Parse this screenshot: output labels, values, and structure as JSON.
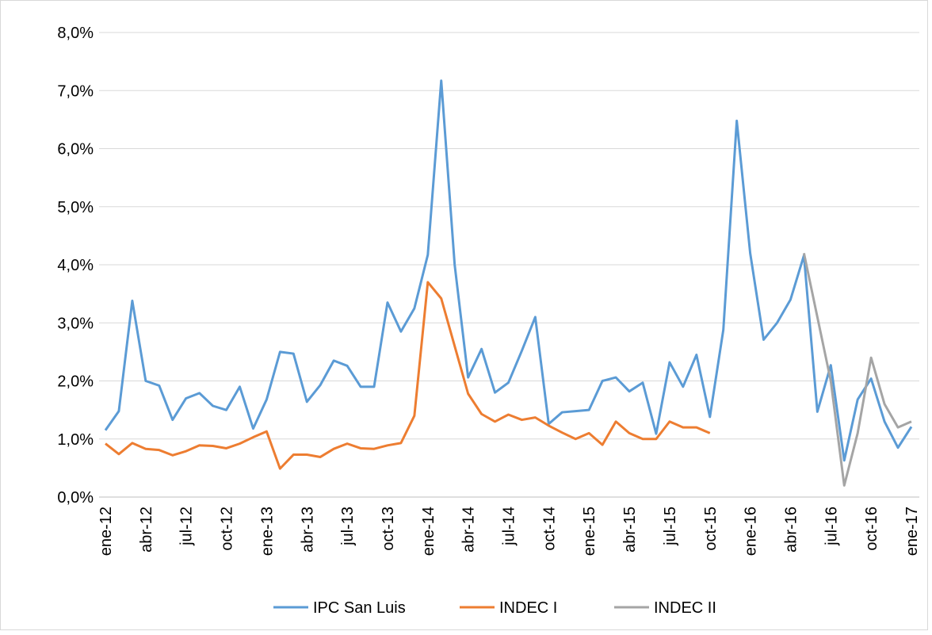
{
  "chart_data": {
    "type": "line",
    "categories": [
      "ene-12",
      null,
      null,
      "abr-12",
      null,
      null,
      "jul-12",
      null,
      null,
      "oct-12",
      null,
      null,
      "ene-13",
      null,
      null,
      "abr-13",
      null,
      null,
      "jul-13",
      null,
      null,
      "oct-13",
      null,
      null,
      "ene-14",
      null,
      null,
      "abr-14",
      null,
      null,
      "jul-14",
      null,
      null,
      "oct-14",
      null,
      null,
      "ene-15",
      null,
      null,
      "abr-15",
      null,
      null,
      "jul-15",
      null,
      null,
      "oct-15",
      null,
      null,
      "ene-16",
      null,
      null,
      "abr-16",
      null,
      null,
      "jul-16",
      null,
      null,
      "oct-16",
      null,
      null,
      "ene-17"
    ],
    "series": [
      {
        "name": "IPC San Luis",
        "color": "#5b9bd5",
        "values": [
          1.15,
          1.48,
          3.38,
          2.0,
          1.92,
          1.33,
          1.7,
          1.79,
          1.57,
          1.5,
          1.9,
          1.18,
          1.68,
          2.5,
          2.47,
          1.64,
          1.93,
          2.35,
          2.26,
          1.9,
          1.9,
          3.35,
          2.85,
          3.25,
          4.17,
          7.17,
          4.0,
          2.06,
          2.55,
          1.8,
          1.97,
          2.52,
          3.1,
          1.26,
          1.46,
          1.48,
          1.5,
          2.0,
          2.06,
          1.82,
          1.97,
          1.09,
          2.32,
          1.9,
          2.45,
          1.38,
          2.88,
          6.48,
          4.2,
          2.71,
          3.0,
          3.4,
          4.16,
          1.47,
          2.27,
          0.63,
          1.68,
          2.04,
          1.3,
          0.85,
          1.21
        ]
      },
      {
        "name": "INDEC I",
        "color": "#ed7d31",
        "values": [
          0.92,
          0.74,
          0.93,
          0.83,
          0.81,
          0.72,
          0.79,
          0.89,
          0.88,
          0.84,
          0.92,
          1.03,
          1.13,
          0.49,
          0.73,
          0.73,
          0.69,
          0.83,
          0.92,
          0.84,
          0.83,
          0.89,
          0.93,
          1.4,
          3.7,
          3.42,
          2.6,
          1.78,
          1.43,
          1.3,
          1.42,
          1.33,
          1.37,
          1.23,
          1.11,
          1.0,
          1.1,
          0.9,
          1.3,
          1.1,
          1.0,
          1.0,
          1.3,
          1.2,
          1.2,
          1.1,
          null,
          null,
          null,
          null,
          null,
          null,
          null,
          null,
          null,
          null,
          null,
          null,
          null,
          null,
          null
        ]
      },
      {
        "name": "INDEC II",
        "color": "#a5a5a5",
        "values": [
          null,
          null,
          null,
          null,
          null,
          null,
          null,
          null,
          null,
          null,
          null,
          null,
          null,
          null,
          null,
          null,
          null,
          null,
          null,
          null,
          null,
          null,
          null,
          null,
          null,
          null,
          null,
          null,
          null,
          null,
          null,
          null,
          null,
          null,
          null,
          null,
          null,
          null,
          null,
          null,
          null,
          null,
          null,
          null,
          null,
          null,
          null,
          null,
          null,
          null,
          null,
          null,
          4.2,
          3.1,
          2.0,
          0.2,
          1.1,
          2.4,
          1.6,
          1.2,
          1.3
        ]
      }
    ],
    "ylim": [
      0,
      8
    ],
    "yticks": [
      {
        "value": 0,
        "label": "0,0%"
      },
      {
        "value": 1,
        "label": "1,0%"
      },
      {
        "value": 2,
        "label": "2,0%"
      },
      {
        "value": 3,
        "label": "3,0%"
      },
      {
        "value": 4,
        "label": "4,0%"
      },
      {
        "value": 5,
        "label": "5,0%"
      },
      {
        "value": 6,
        "label": "6,0%"
      },
      {
        "value": 7,
        "label": "7,0%"
      },
      {
        "value": 8,
        "label": "8,0%"
      }
    ],
    "grid": true,
    "legend": "bottom"
  }
}
